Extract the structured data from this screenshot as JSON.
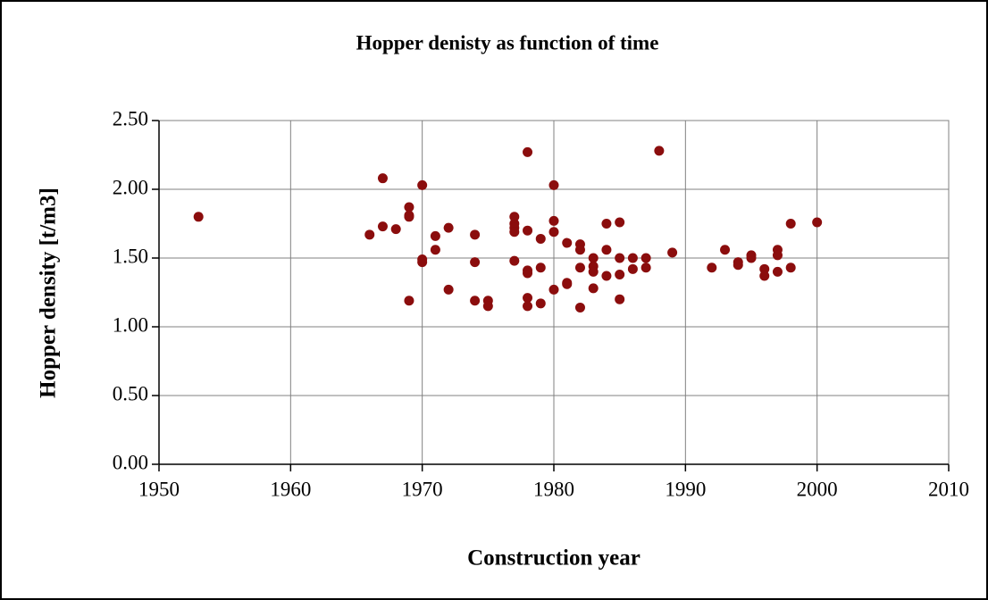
{
  "chart_data": {
    "type": "scatter",
    "title": "Hopper denisty as function of time",
    "x_label": "Construction year",
    "y_label": "Hopper density [t/m3]",
    "color": "#8b0d0d",
    "grid": true,
    "xlim": [
      1950,
      2010
    ],
    "xticks": [
      1950,
      1960,
      1970,
      1980,
      1990,
      2000,
      2010
    ],
    "ylim": [
      0,
      2.5
    ],
    "yticks": [
      {
        "value": 0,
        "label": "0.00"
      },
      {
        "value": 0.5,
        "label": "0.50"
      },
      {
        "value": 1,
        "label": "1.00"
      },
      {
        "value": 1.5,
        "label": "1.50"
      },
      {
        "value": 2,
        "label": "2.00"
      },
      {
        "value": 2.5,
        "label": "2.50"
      }
    ],
    "x": [
      1953,
      1966,
      1967,
      1967,
      1968,
      1969,
      1969,
      1969,
      1969,
      1970,
      1970,
      1970,
      1971,
      1971,
      1972,
      1972,
      1974,
      1974,
      1974,
      1975,
      1975,
      1977,
      1977,
      1977,
      1977,
      1977,
      1978,
      1978,
      1978,
      1978,
      1978,
      1978,
      1979,
      1979,
      1979,
      1980,
      1980,
      1980,
      1980,
      1981,
      1981,
      1981,
      1982,
      1982,
      1982,
      1982,
      1983,
      1983,
      1983,
      1983,
      1984,
      1984,
      1984,
      1985,
      1985,
      1985,
      1985,
      1986,
      1986,
      1987,
      1987,
      1988,
      1989,
      1992,
      1993,
      1994,
      1994,
      1995,
      1995,
      1996,
      1996,
      1997,
      1997,
      1997,
      1998,
      1998,
      2000
    ],
    "values": [
      1.8,
      1.67,
      2.08,
      1.73,
      1.71,
      1.87,
      1.81,
      1.8,
      1.19,
      2.03,
      1.49,
      1.47,
      1.66,
      1.56,
      1.72,
      1.27,
      1.67,
      1.47,
      1.19,
      1.19,
      1.15,
      1.8,
      1.75,
      1.72,
      1.69,
      1.48,
      2.27,
      1.7,
      1.41,
      1.39,
      1.21,
      1.15,
      1.64,
      1.43,
      1.17,
      2.03,
      1.77,
      1.69,
      1.27,
      1.61,
      1.32,
      1.31,
      1.6,
      1.56,
      1.43,
      1.14,
      1.5,
      1.44,
      1.4,
      1.28,
      1.75,
      1.56,
      1.37,
      1.76,
      1.5,
      1.38,
      1.2,
      1.5,
      1.42,
      1.5,
      1.43,
      2.28,
      1.54,
      1.43,
      1.56,
      1.47,
      1.45,
      1.52,
      1.5,
      1.42,
      1.37,
      1.56,
      1.52,
      1.4,
      1.43,
      1.75,
      1.76
    ]
  }
}
